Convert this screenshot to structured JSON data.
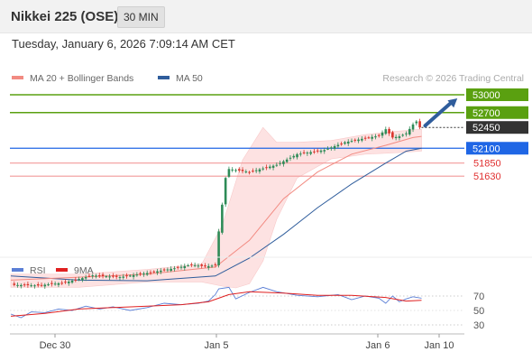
{
  "header": {
    "title": "Nikkei 225 (OSE)",
    "timeframe": "30 MIN"
  },
  "datetime": "Tuesday, January 6, 2026 7:09:14 AM CET",
  "credit": "Research © 2026 Trading Central",
  "colors": {
    "ma20": "#f28b82",
    "ma50": "#2f5d9c",
    "resistance": "#5aa010",
    "support_major": "#1f66e5",
    "support_minor": "#f29a9a",
    "support_text": "#e03030",
    "last": "#333333",
    "up_candle": "#2e8b57",
    "down_candle": "#d9342b",
    "bands_fill": "#fde2e2",
    "rsi": "#5b7fd6",
    "rsi_ma": "#e02020"
  },
  "chart_data": [
    {
      "type": "candlestick",
      "legend": [
        {
          "name": "MA 20 + Bollinger Bands",
          "color": "#f28b82"
        },
        {
          "name": "MA 50",
          "color": "#2f5d9c"
        }
      ],
      "x_ticks": [
        "Dec 30",
        "Jan 5",
        "Jan 6",
        "Jan 10"
      ],
      "levels": [
        {
          "value": 53000,
          "label": "53000",
          "kind": "resistance"
        },
        {
          "value": 52700,
          "label": "52700",
          "kind": "resistance"
        },
        {
          "value": 52450,
          "label": "52450",
          "kind": "last"
        },
        {
          "value": 52100,
          "label": "52100",
          "kind": "support_major"
        },
        {
          "value": 51850,
          "label": "51850",
          "kind": "support_minor"
        },
        {
          "value": 51630,
          "label": "51630",
          "kind": "support_minor"
        }
      ],
      "ylim": [
        49650,
        53050
      ],
      "close_path": [
        [
          0,
          49800
        ],
        [
          8,
          49790
        ],
        [
          16,
          49840
        ],
        [
          24,
          49960
        ],
        [
          32,
          49930
        ],
        [
          40,
          50000
        ],
        [
          48,
          50080
        ],
        [
          53,
          50140
        ],
        [
          57,
          50110
        ],
        [
          60,
          50130
        ],
        [
          61,
          50700
        ],
        [
          63,
          51600
        ],
        [
          64,
          51750
        ],
        [
          70,
          51700
        ],
        [
          78,
          51820
        ],
        [
          84,
          52000
        ],
        [
          92,
          52070
        ],
        [
          98,
          52200
        ],
        [
          104,
          52270
        ],
        [
          108,
          52310
        ],
        [
          110,
          52420
        ],
        [
          112,
          52280
        ],
        [
          114,
          52300
        ],
        [
          116,
          52350
        ],
        [
          118,
          52500
        ],
        [
          119,
          52550
        ],
        [
          120,
          52450
        ],
        [
          120.5,
          52450
        ]
      ],
      "ma20_path": [
        [
          0,
          49880
        ],
        [
          20,
          49930
        ],
        [
          40,
          49980
        ],
        [
          60,
          50100
        ],
        [
          70,
          50550
        ],
        [
          80,
          51250
        ],
        [
          90,
          51700
        ],
        [
          100,
          52000
        ],
        [
          110,
          52150
        ],
        [
          118,
          52280
        ],
        [
          120.5,
          52300
        ]
      ],
      "ma50_path": [
        [
          0,
          49950
        ],
        [
          20,
          49880
        ],
        [
          40,
          49870
        ],
        [
          60,
          49950
        ],
        [
          70,
          50250
        ],
        [
          80,
          50650
        ],
        [
          90,
          51100
        ],
        [
          100,
          51500
        ],
        [
          110,
          51850
        ],
        [
          116,
          52050
        ],
        [
          120.5,
          52100
        ]
      ],
      "bb_upper_path": [
        [
          0,
          49980
        ],
        [
          20,
          49980
        ],
        [
          40,
          50060
        ],
        [
          56,
          50150
        ],
        [
          62,
          50800
        ],
        [
          68,
          51900
        ],
        [
          74,
          52450
        ],
        [
          78,
          52200
        ],
        [
          84,
          52200
        ],
        [
          94,
          52230
        ],
        [
          104,
          52330
        ],
        [
          112,
          52380
        ],
        [
          120.5,
          52420
        ]
      ],
      "bb_lower_path": [
        [
          0,
          49760
        ],
        [
          20,
          49760
        ],
        [
          40,
          49850
        ],
        [
          56,
          49850
        ],
        [
          62,
          49780
        ],
        [
          66,
          49750
        ],
        [
          70,
          49820
        ],
        [
          74,
          50200
        ],
        [
          78,
          50900
        ],
        [
          84,
          51600
        ],
        [
          94,
          51920
        ],
        [
          104,
          52000
        ],
        [
          112,
          52020
        ],
        [
          120.5,
          52050
        ]
      ],
      "forecast_arrow": {
        "from": [
          120.5,
          52450
        ],
        "to": [
          131,
          53000
        ]
      }
    },
    {
      "type": "line",
      "legend": [
        {
          "name": "RSI",
          "color": "#5b7fd6"
        },
        {
          "name": "9MA",
          "color": "#e02020"
        }
      ],
      "y_ticks": [
        70,
        50,
        30
      ],
      "ylim": [
        20,
        80
      ],
      "rsi_path": [
        [
          0,
          45
        ],
        [
          3,
          40
        ],
        [
          6,
          48
        ],
        [
          10,
          47
        ],
        [
          14,
          52
        ],
        [
          18,
          50
        ],
        [
          22,
          56
        ],
        [
          26,
          52
        ],
        [
          30,
          55
        ],
        [
          35,
          50
        ],
        [
          40,
          54
        ],
        [
          45,
          60
        ],
        [
          50,
          58
        ],
        [
          55,
          60
        ],
        [
          58,
          63
        ],
        [
          60,
          72
        ],
        [
          61,
          80
        ],
        [
          64,
          82
        ],
        [
          66,
          66
        ],
        [
          70,
          75
        ],
        [
          74,
          82
        ],
        [
          78,
          76
        ],
        [
          84,
          71
        ],
        [
          90,
          69
        ],
        [
          96,
          72
        ],
        [
          100,
          65
        ],
        [
          104,
          70
        ],
        [
          108,
          67
        ],
        [
          110,
          60
        ],
        [
          112,
          70
        ],
        [
          114,
          62
        ],
        [
          116,
          66
        ],
        [
          118,
          69
        ],
        [
          120.5,
          67
        ]
      ],
      "ma9_path": [
        [
          0,
          42
        ],
        [
          10,
          46
        ],
        [
          20,
          52
        ],
        [
          30,
          54
        ],
        [
          40,
          56
        ],
        [
          50,
          58
        ],
        [
          58,
          62
        ],
        [
          64,
          72
        ],
        [
          70,
          76
        ],
        [
          80,
          74
        ],
        [
          90,
          71
        ],
        [
          100,
          71
        ],
        [
          110,
          68
        ],
        [
          116,
          63
        ],
        [
          120.5,
          64
        ]
      ]
    }
  ]
}
